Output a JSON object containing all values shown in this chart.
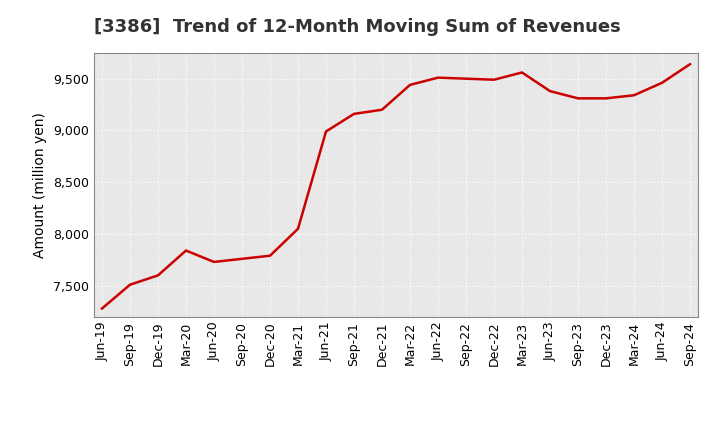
{
  "title": "[3386]  Trend of 12-Month Moving Sum of Revenues",
  "ylabel": "Amount (million yen)",
  "line_color": "#CC0000",
  "plot_bg_color": "#e8e8e8",
  "fig_bg_color": "#ffffff",
  "grid_color": "#ffffff",
  "spine_color": "#888888",
  "xlabels": [
    "Jun-19",
    "Sep-19",
    "Dec-19",
    "Mar-20",
    "Jun-20",
    "Sep-20",
    "Dec-20",
    "Mar-21",
    "Jun-21",
    "Sep-21",
    "Dec-21",
    "Mar-22",
    "Jun-22",
    "Sep-22",
    "Dec-22",
    "Mar-23",
    "Jun-23",
    "Sep-23",
    "Dec-23",
    "Mar-24",
    "Jun-24",
    "Sep-24"
  ],
  "values": [
    7280,
    7510,
    7600,
    7840,
    7730,
    7760,
    7790,
    8050,
    8990,
    9160,
    9200,
    9440,
    9510,
    9500,
    9490,
    9560,
    9380,
    9310,
    9310,
    9340,
    9460,
    9640
  ],
  "ylim": [
    7200,
    9750
  ],
  "yticks": [
    7500,
    8000,
    8500,
    9000,
    9500
  ],
  "title_fontsize": 13,
  "label_fontsize": 10,
  "tick_fontsize": 9
}
